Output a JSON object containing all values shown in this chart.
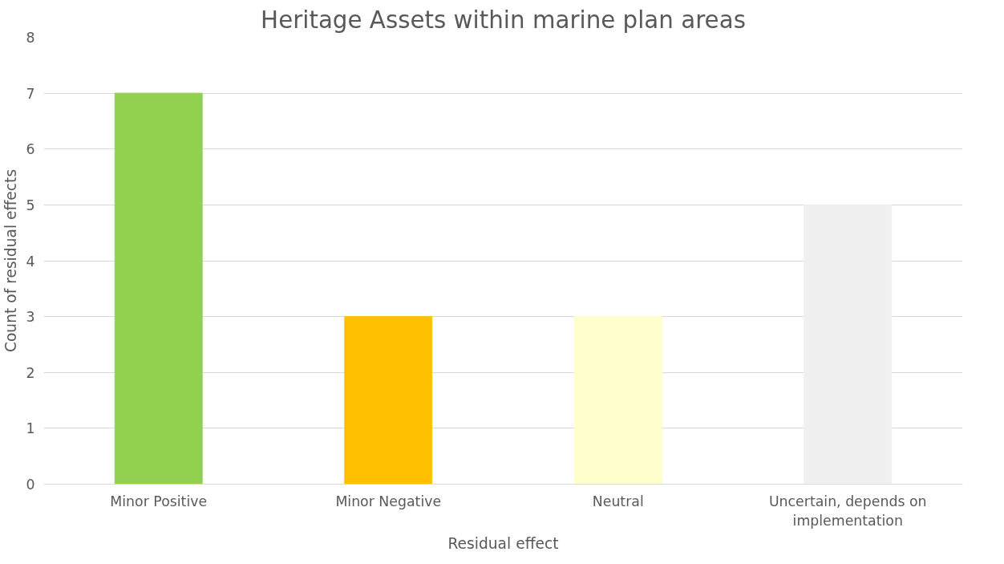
{
  "chart_data": {
    "type": "bar",
    "title": "Heritage Assets within marine plan areas",
    "xlabel": "Residual effect",
    "ylabel": "Count of residual effects",
    "categories": [
      "Minor Positive",
      "Minor Negative",
      "Neutral",
      "Uncertain, depends on implementation"
    ],
    "values": [
      7,
      3,
      3,
      5
    ],
    "colors": [
      "#92d050",
      "#ffc000",
      "#ffffcc",
      "#f0f0f0"
    ],
    "ylim": [
      0,
      8
    ],
    "yticks": [
      0,
      1,
      2,
      3,
      4,
      5,
      6,
      7,
      8
    ],
    "grid": "y"
  }
}
